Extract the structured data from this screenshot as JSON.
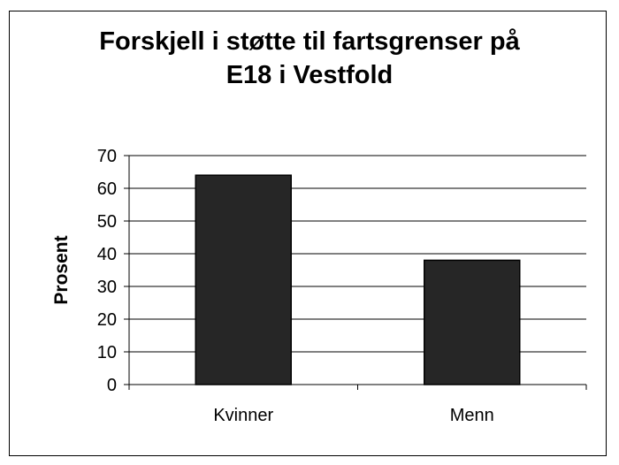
{
  "chart_data": {
    "type": "bar",
    "title_lines": [
      "Forskjell i støtte til fartsgrenser på",
      "E18 i Vestfold"
    ],
    "categories": [
      "Kvinner",
      "Menn"
    ],
    "values": [
      64,
      38
    ],
    "xlabel": "",
    "ylabel": "Prosent",
    "ylim": [
      0,
      70
    ],
    "yticks": [
      0,
      10,
      20,
      30,
      40,
      50,
      60,
      70
    ],
    "grid": true,
    "legend": "none",
    "bar_color": "#262626"
  }
}
